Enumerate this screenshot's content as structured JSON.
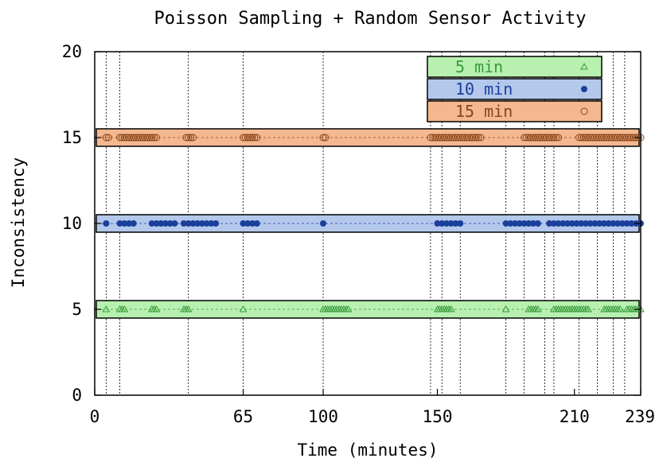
{
  "chart_data": {
    "type": "scatter",
    "title": "Poisson Sampling + Random Sensor Activity",
    "xlabel": "Time (minutes)",
    "ylabel": "Inconsistency",
    "xlim": [
      0,
      239
    ],
    "ylim": [
      0,
      20
    ],
    "x_ticks": [
      "0",
      "65",
      "100",
      "150",
      "210",
      "239"
    ],
    "y_ticks": [
      "0",
      "5",
      "10",
      "15",
      "20"
    ],
    "grid": "vertical dashed lines at event times",
    "legend_position": "top-right",
    "event_lines": [
      5,
      11,
      41,
      65,
      100,
      147,
      152,
      160,
      180,
      188,
      197,
      201,
      212,
      220,
      227,
      232
    ],
    "series": [
      {
        "name": "5 min",
        "marker": "triangle",
        "color": "#b8f0b0",
        "marker_color": "#3a9a3a",
        "y": 5,
        "x": [
          5,
          11,
          12,
          13,
          25,
          26,
          27,
          39,
          40,
          41,
          65,
          100,
          101,
          102,
          103,
          104,
          105,
          106,
          107,
          108,
          109,
          110,
          111,
          150,
          151,
          152,
          153,
          154,
          155,
          156,
          180,
          190,
          191,
          192,
          193,
          194,
          201,
          202,
          203,
          204,
          205,
          206,
          207,
          208,
          209,
          210,
          211,
          212,
          213,
          214,
          215,
          216,
          223,
          224,
          225,
          226,
          227,
          228,
          229,
          230,
          233,
          234,
          235,
          236,
          237,
          238,
          239
        ]
      },
      {
        "name": "10 min",
        "marker": "filled-circle",
        "color": "#b4c8ec",
        "marker_color": "#1a3f9a",
        "y": 10,
        "x": [
          5,
          11,
          13,
          15,
          17,
          25,
          27,
          29,
          31,
          33,
          35,
          39,
          41,
          43,
          45,
          47,
          49,
          51,
          53,
          65,
          67,
          69,
          71,
          100,
          150,
          152,
          154,
          156,
          158,
          160,
          180,
          182,
          184,
          186,
          188,
          190,
          192,
          194,
          199,
          201,
          203,
          205,
          207,
          209,
          211,
          213,
          215,
          217,
          219,
          221,
          223,
          225,
          227,
          229,
          231,
          233,
          235,
          237,
          239
        ]
      },
      {
        "name": "15 min",
        "marker": "open-circle",
        "color": "#f4b890",
        "marker_color": "#8a4418",
        "y": 15,
        "x": [
          5,
          6,
          11,
          12,
          13,
          14,
          15,
          16,
          17,
          18,
          19,
          20,
          21,
          22,
          23,
          24,
          25,
          26,
          27,
          40,
          41,
          42,
          43,
          65,
          66,
          67,
          68,
          69,
          70,
          71,
          100,
          101,
          147,
          148,
          149,
          150,
          151,
          152,
          153,
          154,
          155,
          156,
          157,
          158,
          159,
          160,
          161,
          162,
          163,
          164,
          165,
          166,
          167,
          168,
          169,
          188,
          189,
          190,
          191,
          192,
          193,
          194,
          195,
          196,
          197,
          198,
          199,
          200,
          201,
          202,
          203,
          212,
          213,
          214,
          215,
          216,
          217,
          218,
          219,
          220,
          221,
          222,
          223,
          224,
          225,
          226,
          227,
          228,
          229,
          230,
          231,
          232,
          233,
          234,
          235,
          236,
          237,
          238,
          239
        ]
      }
    ]
  }
}
